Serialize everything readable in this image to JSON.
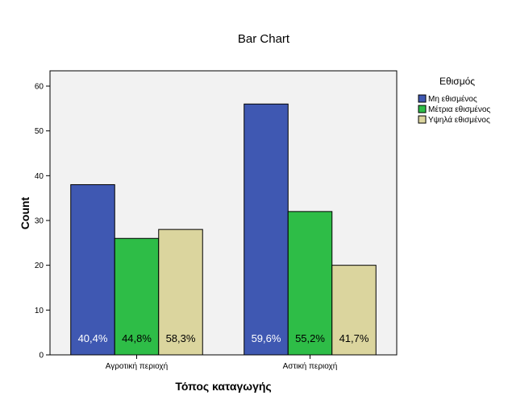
{
  "chart_data": {
    "type": "bar",
    "title": "Bar Chart",
    "xlabel": "Τόπος καταγωγής",
    "ylabel": "Count",
    "ylim": [
      0,
      60
    ],
    "yticks": [
      0,
      10,
      20,
      30,
      40,
      50,
      60
    ],
    "categories": [
      "Αγροτική περιοχή",
      "Αστική περιοχή"
    ],
    "legend_title": "Εθισμός",
    "legend_position": "right",
    "series": [
      {
        "name": "Μη εθισμένος",
        "color": "#3f58b2",
        "values": [
          38,
          56
        ],
        "labels": [
          "40,4%",
          "59,6%"
        ],
        "label_color": "#ffffff"
      },
      {
        "name": "Μέτρια εθισμένος",
        "color": "#2ebd47",
        "values": [
          26,
          32
        ],
        "labels": [
          "44,8%",
          "55,2%"
        ],
        "label_color": "#000000"
      },
      {
        "name": "Υψηλά εθισμένος",
        "color": "#dbd59e",
        "values": [
          28,
          20
        ],
        "labels": [
          "58,3%",
          "41,7%"
        ],
        "label_color": "#000000"
      }
    ],
    "plot_background": "#f2f2f2"
  }
}
